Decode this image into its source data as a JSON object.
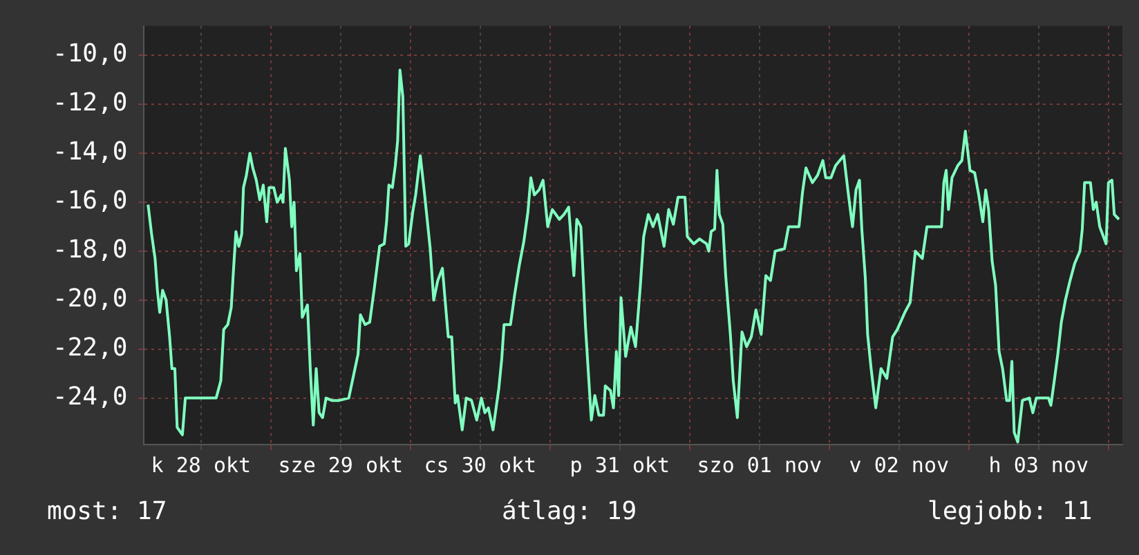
{
  "chart_data": {
    "type": "line",
    "x": [
      "--10-28T02:54",
      "--10-28T03:30",
      "--10-28T04:06",
      "--10-28T04:30",
      "--10-28T04:54",
      "--10-28T05:24",
      "--10-28T06:00",
      "--10-28T06:36",
      "--10-28T07:00",
      "--10-28T07:30",
      "--10-28T07:54",
      "--10-28T08:48",
      "--10-28T09:18",
      "--10-28T14:36",
      "--10-28T15:24",
      "--10-28T15:54",
      "--10-28T16:36",
      "--10-28T17:12",
      "--10-28T17:36",
      "--10-28T18:00",
      "--10-28T18:30",
      "--10-28T19:00",
      "--10-28T19:18",
      "--10-28T19:48",
      "--10-28T20:24",
      "--10-28T20:54",
      "--10-28T21:30",
      "--10-28T22:06",
      "--10-28T22:42",
      "--10-28T23:18",
      "--10-28T23:42",
      "--10-29T00:30",
      "--10-29T01:06",
      "--10-29T01:48",
      "--10-29T02:06",
      "--10-29T02:30",
      "--10-29T03:12",
      "--10-29T03:36",
      "--10-29T04:00",
      "--10-29T04:24",
      "--10-29T05:00",
      "--10-29T05:24",
      "--10-29T06:18",
      "--10-29T06:48",
      "--10-29T07:18",
      "--10-29T07:48",
      "--10-29T08:18",
      "--10-29T08:54",
      "--10-29T09:30",
      "--10-29T10:30",
      "--10-29T11:42",
      "--10-29T13:24",
      "--10-29T14:12",
      "--10-29T15:00",
      "--10-29T15:24",
      "--10-29T16:12",
      "--10-29T17:00",
      "--10-29T17:48",
      "--10-29T18:42",
      "--10-29T19:30",
      "--10-29T19:54",
      "--10-29T20:18",
      "--10-29T20:54",
      "--10-29T21:24",
      "--10-29T21:48",
      "--10-29T22:12",
      "--10-29T22:42",
      "--10-29T23:12",
      "--10-29T23:42",
      "--10-30T00:24",
      "--10-30T00:54",
      "--10-30T01:42",
      "--10-30T02:24",
      "--10-30T03:24",
      "--10-30T04:00",
      "--10-30T04:42",
      "--10-30T05:30",
      "--10-30T06:30",
      "--10-30T07:06",
      "--10-30T07:42",
      "--10-30T08:06",
      "--10-30T08:54",
      "--10-30T09:36",
      "--10-30T10:30",
      "--10-30T11:24",
      "--10-30T12:12",
      "--10-30T12:48",
      "--10-30T13:24",
      "--10-30T14:12",
      "--10-30T15:12",
      "--10-30T15:42",
      "--10-30T16:06",
      "--10-30T17:12",
      "--10-30T17:54",
      "--10-30T18:42",
      "--10-30T19:30",
      "--10-30T20:12",
      "--10-30T20:42",
      "--10-30T21:18",
      "--10-30T22:06",
      "--10-30T22:48",
      "--10-30T23:36",
      "--10-31T00:24",
      "--10-31T01:36",
      "--10-31T02:24",
      "--10-31T03:12",
      "--10-31T04:06",
      "--10-31T04:36",
      "--10-31T05:18",
      "--10-31T06:06",
      "--10-31T07:06",
      "--10-31T07:42",
      "--10-31T08:24",
      "--10-31T09:12",
      "--10-31T09:30",
      "--10-31T10:24",
      "--10-31T10:54",
      "--10-31T11:24",
      "--10-31T11:48",
      "--10-31T12:12",
      "--10-31T13:00",
      "--10-31T13:54",
      "--10-31T14:42",
      "--10-31T15:30",
      "--10-31T16:06",
      "--10-31T16:54",
      "--10-31T17:42",
      "--10-31T18:30",
      "--10-31T19:36",
      "--10-31T20:24",
      "--10-31T21:12",
      "--10-31T22:00",
      "--10-31T23:12",
      "--10-31T23:36",
      "--11-01T00:42",
      "--11-01T01:42",
      "--11-01T02:54",
      "--11-01T03:18",
      "--11-01T03:42",
      "--11-01T04:18",
      "--11-01T04:42",
      "--11-01T05:06",
      "--11-01T05:42",
      "--11-01T06:12",
      "--11-01T07:00",
      "--11-01T07:30",
      "--11-01T08:12",
      "--11-01T09:00",
      "--11-01T09:48",
      "--11-01T10:36",
      "--11-01T11:24",
      "--11-01T12:18",
      "--11-01T13:06",
      "--11-01T13:54",
      "--11-01T14:42",
      "--11-01T16:18",
      "--11-01T17:00",
      "--11-01T18:48",
      "--11-01T19:24",
      "--11-01T20:00",
      "--11-01T21:06",
      "--11-01T22:00",
      "--11-01T22:54",
      "--11-01T23:24",
      "--11-02T00:18",
      "--11-02T01:06",
      "--11-02T02:30",
      "--11-02T03:12",
      "--11-02T04:00",
      "--11-02T04:36",
      "--11-02T05:12",
      "--11-02T05:36",
      "--11-02T06:12",
      "--11-02T06:36",
      "--11-02T07:12",
      "--11-02T08:00",
      "--11-02T08:54",
      "--11-02T09:54",
      "--11-02T10:54",
      "--11-02T11:42",
      "--11-02T13:00",
      "--11-02T13:54",
      "--11-02T14:48",
      "--11-02T16:00",
      "--11-02T16:48",
      "--11-02T19:18",
      "--11-02T19:42",
      "--11-02T20:06",
      "--11-02T20:30",
      "--11-02T21:06",
      "--11-02T22:06",
      "--11-02T22:48",
      "--11-02T23:24",
      "--11-03T00:12",
      "--11-03T01:00",
      "--11-03T01:42",
      "--11-03T02:24",
      "--11-03T02:54",
      "--11-03T03:24",
      "--11-03T04:00",
      "--11-03T04:36",
      "--11-03T05:12",
      "--11-03T05:48",
      "--11-03T06:30",
      "--11-03T07:00",
      "--11-03T07:24",
      "--11-03T07:48",
      "--11-03T08:24",
      "--11-03T09:12",
      "--11-03T10:24",
      "--11-03T11:00",
      "--11-03T11:36",
      "--11-03T13:42",
      "--11-03T14:06",
      "--11-03T14:48",
      "--11-03T15:18",
      "--11-03T15:54",
      "--11-03T16:36",
      "--11-03T17:24",
      "--11-03T18:12",
      "--11-03T19:06",
      "--11-03T19:30",
      "--11-03T19:54",
      "--11-03T20:54",
      "--11-03T21:24",
      "--11-03T21:54",
      "--11-03T22:30",
      "--11-03T23:36",
      "--11-04T00:00",
      "--11-04T00:36",
      "--11-04T01:00",
      "--11-04T01:48"
    ],
    "series": [
      {
        "color": "#80ffc0",
        "values": [
          -16.1,
          -17.3,
          -18.3,
          -19.6,
          -20.5,
          -19.6,
          -20.0,
          -21.5,
          -22.8,
          -22.8,
          -25.2,
          -25.5,
          -24.0,
          -24.0,
          -23.3,
          -21.2,
          -21.0,
          -20.3,
          -18.7,
          -17.2,
          -17.8,
          -17.3,
          -15.4,
          -14.9,
          -14.0,
          -14.6,
          -15.1,
          -15.9,
          -15.3,
          -16.8,
          -15.4,
          -15.4,
          -16.0,
          -15.7,
          -16.0,
          -13.8,
          -15.1,
          -17.0,
          -16.0,
          -18.8,
          -18.1,
          -20.7,
          -20.2,
          -22.9,
          -25.1,
          -22.8,
          -24.6,
          -24.8,
          -24.0,
          -24.1,
          -24.1,
          -24.0,
          -23.1,
          -22.2,
          -20.6,
          -21.0,
          -20.9,
          -19.5,
          -17.8,
          -17.7,
          -16.8,
          -15.3,
          -15.4,
          -14.5,
          -13.5,
          -10.6,
          -11.7,
          -17.8,
          -17.7,
          -16.4,
          -15.7,
          -14.1,
          -15.6,
          -17.9,
          -20.0,
          -19.2,
          -18.7,
          -21.5,
          -21.5,
          -24.2,
          -23.9,
          -25.3,
          -24.0,
          -24.1,
          -24.9,
          -24.0,
          -24.6,
          -24.4,
          -25.3,
          -23.6,
          -22.4,
          -21.0,
          -21.0,
          -19.8,
          -18.6,
          -17.6,
          -16.4,
          -15.0,
          -15.7,
          -15.5,
          -15.1,
          -17.0,
          -16.3,
          -16.7,
          -16.5,
          -16.2,
          -19.0,
          -16.7,
          -17.0,
          -21.1,
          -24.9,
          -23.9,
          -24.7,
          -24.7,
          -23.5,
          -23.7,
          -24.4,
          -22.1,
          -23.9,
          -19.9,
          -22.3,
          -21.1,
          -21.9,
          -19.5,
          -17.4,
          -16.5,
          -17.0,
          -16.5,
          -17.8,
          -16.3,
          -16.9,
          -15.8,
          -15.8,
          -17.4,
          -17.7,
          -17.5,
          -17.7,
          -18.0,
          -17.2,
          -17.1,
          -14.7,
          -16.5,
          -16.9,
          -19.0,
          -21.4,
          -23.3,
          -24.8,
          -21.3,
          -21.9,
          -21.5,
          -20.4,
          -21.4,
          -19.0,
          -19.2,
          -18.0,
          -17.9,
          -17.0,
          -17.0,
          -15.6,
          -14.6,
          -15.2,
          -14.9,
          -14.3,
          -15.0,
          -15.0,
          -14.5,
          -14.1,
          -15.5,
          -17.0,
          -15.5,
          -15.1,
          -17.1,
          -19.1,
          -21.4,
          -22.8,
          -24.4,
          -22.8,
          -23.2,
          -21.5,
          -21.2,
          -20.5,
          -20.1,
          -18.0,
          -18.3,
          -17.0,
          -17.0,
          -15.2,
          -14.7,
          -16.3,
          -15.0,
          -14.5,
          -14.3,
          -13.1,
          -14.7,
          -14.8,
          -15.7,
          -16.8,
          -15.5,
          -16.3,
          -18.4,
          -19.4,
          -22.1,
          -22.8,
          -24.1,
          -24.1,
          -22.5,
          -25.4,
          -25.8,
          -24.1,
          -24.0,
          -24.6,
          -24.0,
          -24.0,
          -24.3,
          -23.1,
          -22.2,
          -20.9,
          -20.0,
          -19.2,
          -18.5,
          -18.0,
          -17.1,
          -15.2,
          -15.2,
          -16.3,
          -16.0,
          -17.0,
          -17.7,
          -15.2,
          -15.1,
          -16.5,
          -16.7
        ]
      }
    ],
    "xlim": [
      "--10-28T02:12",
      "--11-04T02:24"
    ],
    "xticks": [
      {
        "value": "--10-28T12:00",
        "label": "k 28 okt"
      },
      {
        "value": "--10-29T00:00",
        "label": null
      },
      {
        "value": "--10-29T12:00",
        "label": "sze 29 okt"
      },
      {
        "value": "--10-30T00:00",
        "label": null
      },
      {
        "value": "--10-30T12:00",
        "label": "cs 30 okt"
      },
      {
        "value": "--10-31T00:00",
        "label": null
      },
      {
        "value": "--10-31T12:00",
        "label": "p 31 okt"
      },
      {
        "value": "--11-01T00:00",
        "label": null
      },
      {
        "value": "--11-01T12:00",
        "label": "szo 01 nov"
      },
      {
        "value": "--11-02T00:00",
        "label": null
      },
      {
        "value": "--11-02T12:00",
        "label": "v 02 nov"
      },
      {
        "value": "--11-03T00:00",
        "label": null
      },
      {
        "value": "--11-03T12:00",
        "label": "h 03 nov"
      },
      {
        "value": "--11-04T00:00",
        "label": null
      }
    ],
    "ylim": [
      -25.9,
      -8.8
    ],
    "yticks": [
      {
        "value": -24,
        "label": "-24,0"
      },
      {
        "value": -22,
        "label": "-22,0"
      },
      {
        "value": -20,
        "label": "-20,0"
      },
      {
        "value": -18,
        "label": "-18,0"
      },
      {
        "value": -16,
        "label": "-16,0"
      },
      {
        "value": -14,
        "label": "-14,0"
      },
      {
        "value": -12,
        "label": "-12,0"
      },
      {
        "value": -10,
        "label": "-10,0"
      }
    ],
    "grid": true,
    "legend": false,
    "marker": "none",
    "line_style": "solid",
    "annotations": [
      "most: 17",
      "átlag: 19",
      "legjobb: 11"
    ]
  }
}
